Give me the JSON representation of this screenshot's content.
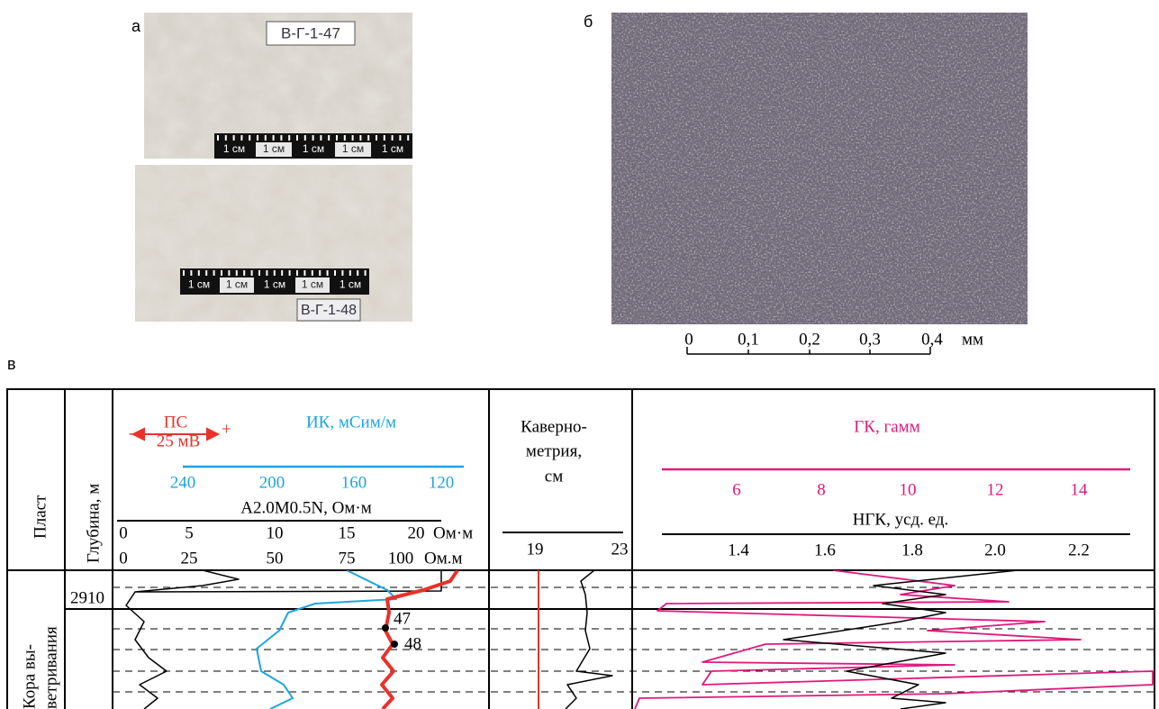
{
  "panel_a": {
    "label": "а",
    "photos": [
      {
        "sample": "В-Г-1-47",
        "scale": [
          "1 см",
          "1 см",
          "1 см",
          "1 см",
          "1 см"
        ]
      },
      {
        "sample": "В-Г-1-48",
        "scale": [
          "1 см",
          "1 см",
          "1 см",
          "1 см",
          "1 см"
        ]
      }
    ]
  },
  "panel_b": {
    "label": "б",
    "scale_ticks": [
      "0",
      "0,1",
      "0,2",
      "0,3",
      "0,4"
    ],
    "scale_unit": "мм"
  },
  "panel_c": {
    "label": "в",
    "columns": {
      "layer": "Пласт",
      "depth": "Глубина, м",
      "sp": {
        "title": "ПС",
        "scale": "25 мВ",
        "minus": "-",
        "plus": "+"
      },
      "ik": {
        "title": "ИК, мСим/м",
        "ticks": [
          "240",
          "200",
          "160",
          "120"
        ]
      },
      "resistivity": {
        "title": "A2.0M0.5N, Ом·м",
        "ticks": [
          "0",
          "5",
          "10",
          "15",
          "20"
        ],
        "unit": "Ом·м"
      },
      "resistivity2": {
        "ticks": [
          "0",
          "25",
          "50",
          "75",
          "100"
        ],
        "unit": "Ом.м"
      },
      "caliper": {
        "title": [
          "Каверно-",
          "метрия,",
          "см"
        ],
        "ticks": [
          "19",
          "23"
        ]
      },
      "gk": {
        "title": "ГК, гамм",
        "ticks": [
          "6",
          "8",
          "10",
          "12",
          "14"
        ]
      },
      "ngk": {
        "title": "НГК, усд. ед.",
        "ticks": [
          "1.4",
          "1.6",
          "1.8",
          "2.0",
          "2.2"
        ]
      }
    },
    "depth_label": "2910",
    "layer_name": [
      "Кора вы-",
      "ветривания"
    ],
    "samples": [
      "47",
      "48"
    ]
  }
}
